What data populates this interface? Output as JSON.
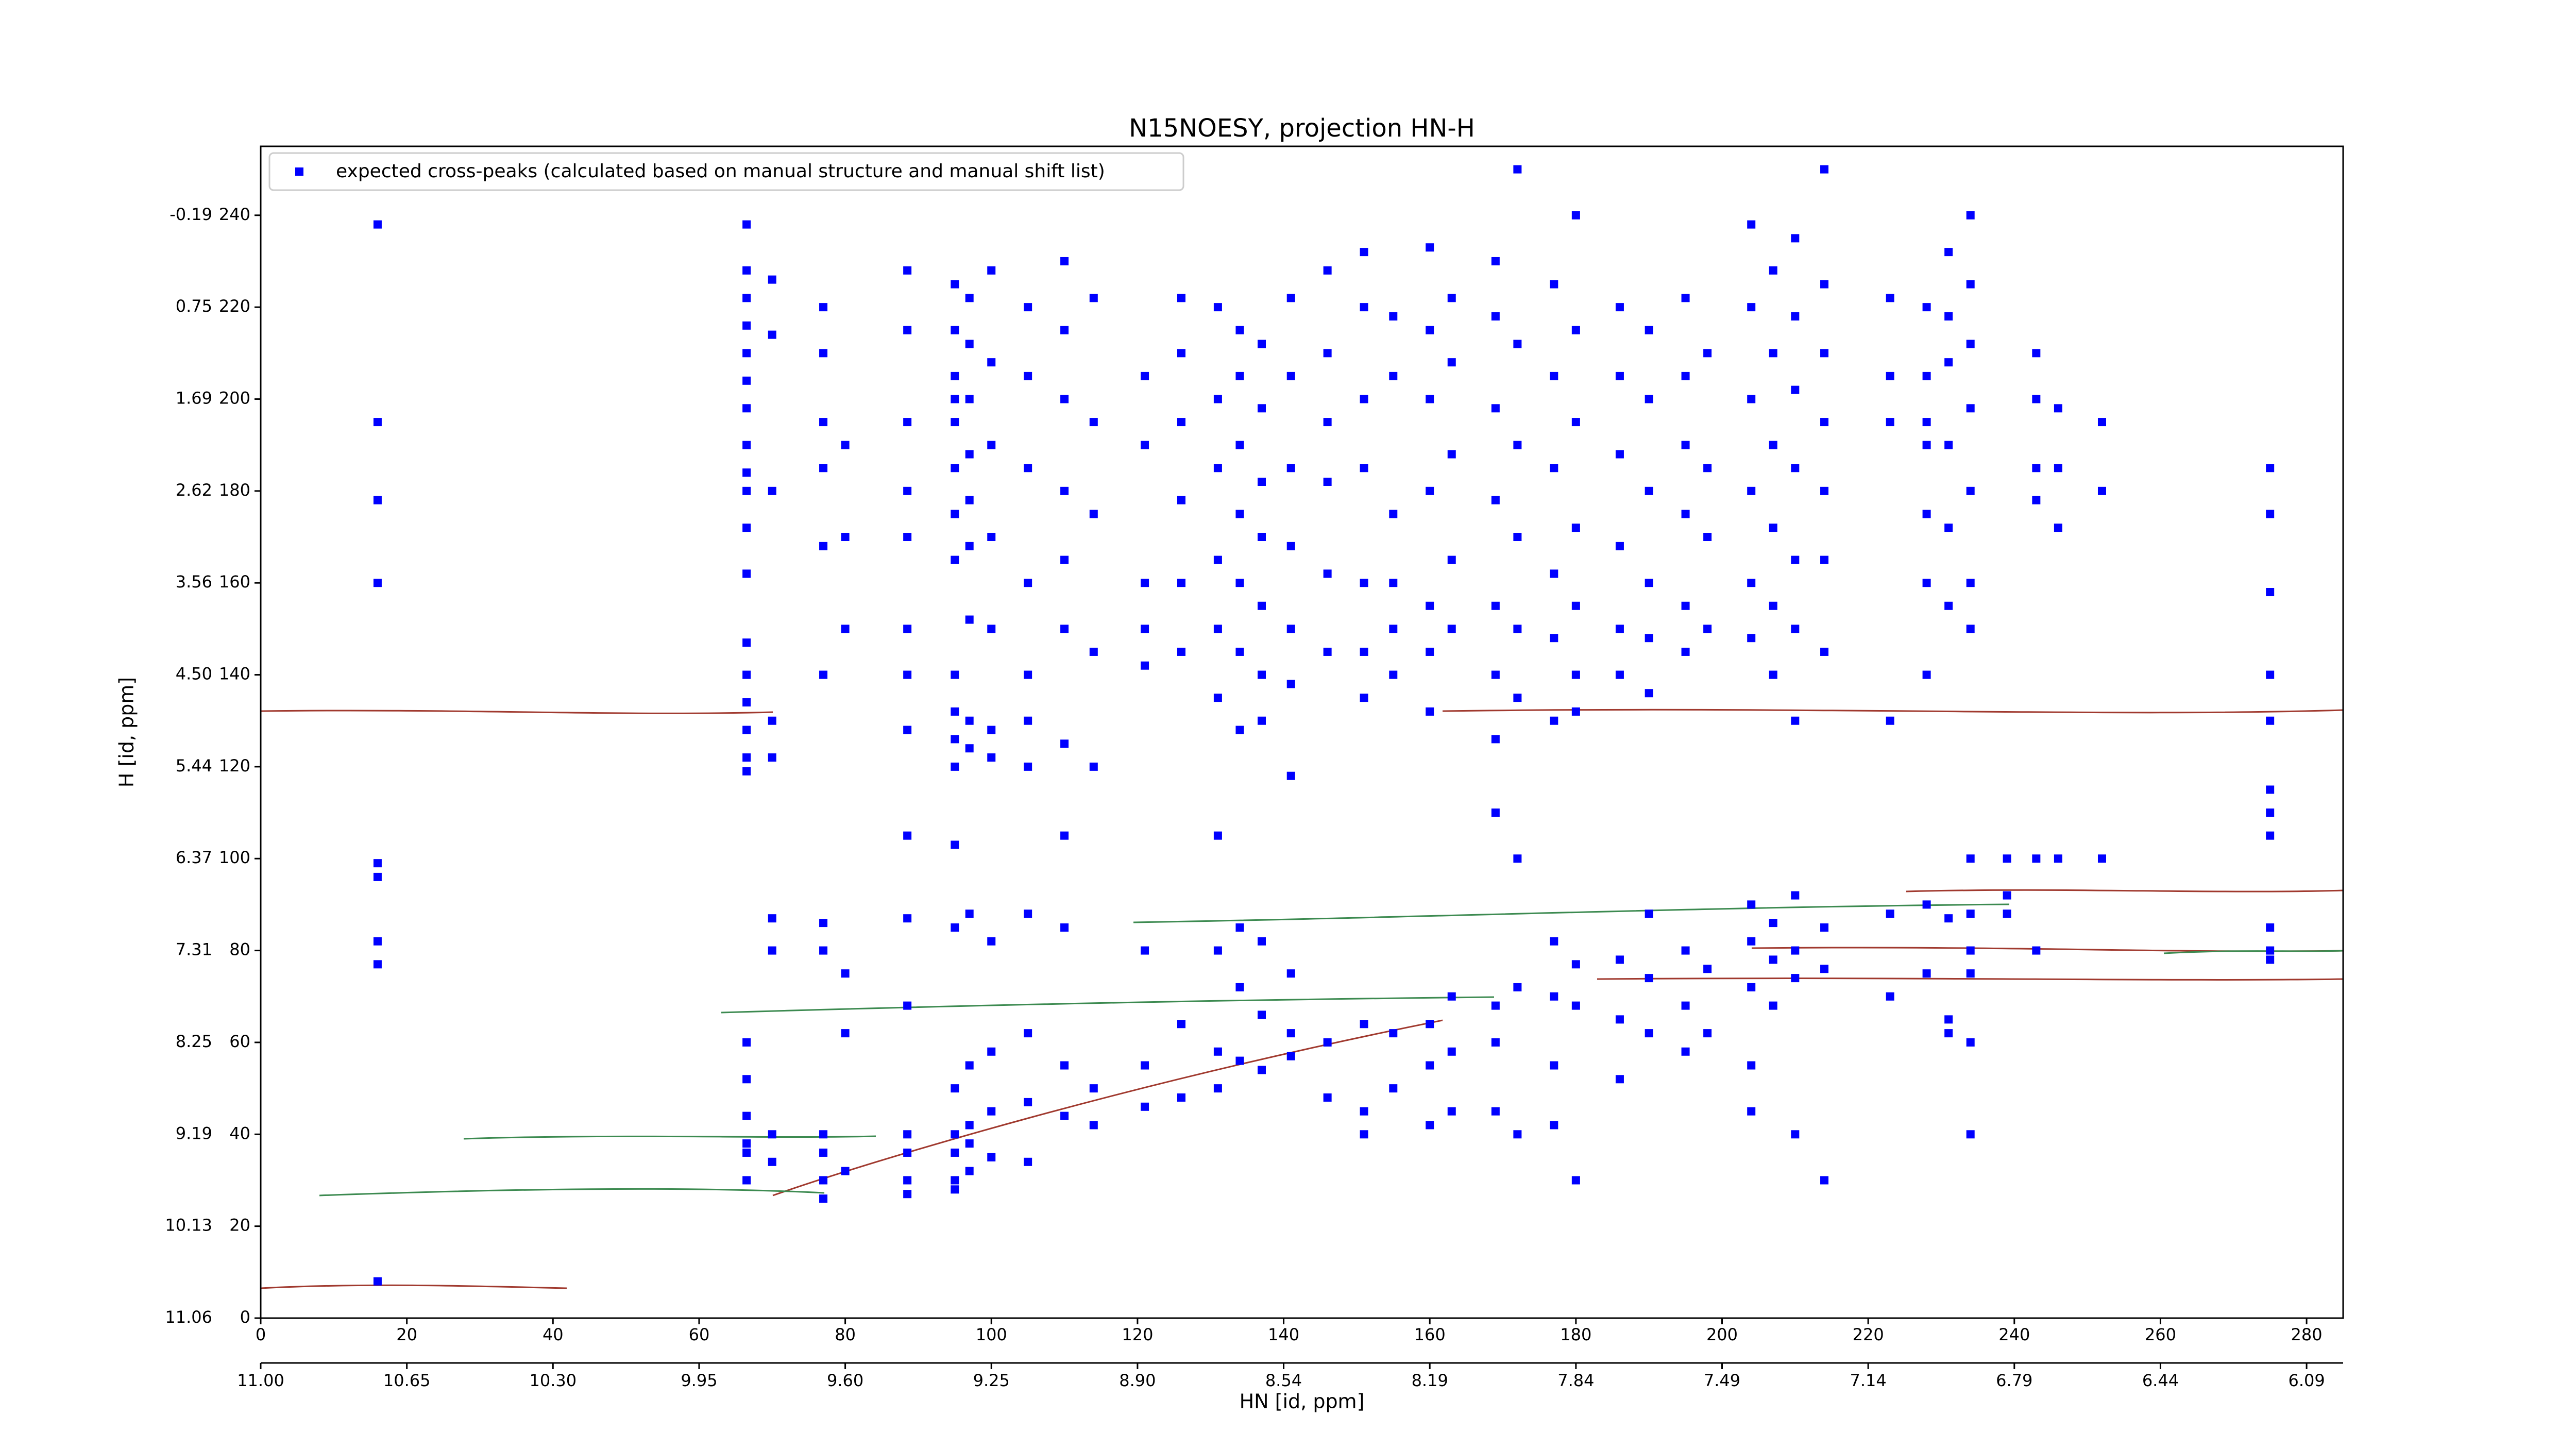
{
  "chart_data": {
    "type": "scatter",
    "title": "N15NOESY, projection HN-H",
    "xlabel": "HN [id, ppm]",
    "ylabel": "H [id, ppm]",
    "xlim": [
      0,
      285
    ],
    "ylim": [
      0,
      255
    ],
    "xticks": [
      0,
      20,
      40,
      60,
      80,
      100,
      120,
      140,
      160,
      180,
      200,
      220,
      240,
      260,
      280
    ],
    "x2ticks": [
      {
        "value": 0,
        "label": "11.00"
      },
      {
        "value": 20,
        "label": "10.65"
      },
      {
        "value": 40,
        "label": "10.30"
      },
      {
        "value": 60,
        "label": "9.95"
      },
      {
        "value": 80,
        "label": "9.60"
      },
      {
        "value": 100,
        "label": "9.25"
      },
      {
        "value": 120,
        "label": "8.90"
      },
      {
        "value": 140,
        "label": "8.54"
      },
      {
        "value": 160,
        "label": "8.19"
      },
      {
        "value": 180,
        "label": "7.84"
      },
      {
        "value": 200,
        "label": "7.49"
      },
      {
        "value": 220,
        "label": "7.14"
      },
      {
        "value": 240,
        "label": "6.79"
      },
      {
        "value": 260,
        "label": "6.44"
      },
      {
        "value": 280,
        "label": "6.09"
      }
    ],
    "yticks": [
      0,
      20,
      40,
      60,
      80,
      100,
      120,
      140,
      160,
      180,
      200,
      220,
      240
    ],
    "y2ticks": [
      {
        "value": 0,
        "label": "11.06"
      },
      {
        "value": 20,
        "label": "10.13"
      },
      {
        "value": 40,
        "label": "9.19"
      },
      {
        "value": 60,
        "label": "8.25"
      },
      {
        "value": 80,
        "label": "7.31"
      },
      {
        "value": 100,
        "label": "6.37"
      },
      {
        "value": 120,
        "label": "5.44"
      },
      {
        "value": 140,
        "label": "4.50"
      },
      {
        "value": 160,
        "label": "3.56"
      },
      {
        "value": 180,
        "label": "2.62"
      },
      {
        "value": 200,
        "label": "1.69"
      },
      {
        "value": 220,
        "label": "0.75"
      },
      {
        "value": 240,
        "label": "-0.19"
      }
    ],
    "legend": "upper left",
    "series": [
      {
        "name": "expected cross-peaks (calculated based on manual structure and manual shift list)",
        "color": "#0000ff",
        "x": [
          16,
          16,
          16,
          16,
          16,
          16,
          16,
          16,
          16,
          66.5,
          66.5,
          66.5,
          66.5,
          66.5,
          66.5,
          66.5,
          66.5,
          66.5,
          66.5,
          66.5,
          66.5,
          66.5,
          66.5,
          66.5,
          66.5,
          66.5,
          66.5,
          66.5,
          66.5,
          66.5,
          66.5,
          66.5,
          66.5,
          70,
          70,
          70,
          70,
          70,
          70,
          70,
          70,
          70,
          77,
          77,
          77,
          77,
          77,
          77,
          77,
          77,
          77,
          77,
          77,
          77,
          80,
          80,
          80,
          80,
          80,
          80,
          88.5,
          88.5,
          88.5,
          88.5,
          88.5,
          88.5,
          88.5,
          88.5,
          88.5,
          88.5,
          88.5,
          88.5,
          88.5,
          88.5,
          88.5,
          95,
          95,
          95,
          95,
          95,
          95,
          95,
          95,
          95,
          95,
          95,
          95,
          95,
          95,
          95,
          95,
          95,
          95,
          95,
          97,
          97,
          97,
          97,
          97,
          97,
          97,
          97,
          97,
          97,
          97,
          97,
          97,
          97,
          100,
          100,
          100,
          100,
          100,
          100,
          100,
          100,
          100,
          100,
          100,
          105,
          105,
          105,
          105,
          105,
          105,
          105,
          105,
          105,
          105,
          105,
          110,
          110,
          110,
          110,
          110,
          110,
          110,
          110,
          110,
          110,
          110,
          114,
          114,
          114,
          114,
          114,
          114,
          114,
          121,
          121,
          121,
          121,
          121,
          121,
          121,
          121,
          126,
          126,
          126,
          126,
          126,
          126,
          126,
          126,
          131,
          131,
          131,
          131,
          131,
          131,
          131,
          131,
          131,
          131,
          134,
          134,
          134,
          134,
          134,
          134,
          134,
          134,
          134,
          134,
          137,
          137,
          137,
          137,
          137,
          137,
          137,
          137,
          137,
          137,
          141,
          141,
          141,
          141,
          141,
          141,
          141,
          141,
          141,
          141,
          146,
          146,
          146,
          146,
          146,
          146,
          146,
          146,
          151,
          151,
          151,
          151,
          151,
          151,
          151,
          151,
          151,
          151,
          155,
          155,
          155,
          155,
          155,
          155,
          155,
          155,
          160,
          160,
          160,
          160,
          160,
          160,
          160,
          160,
          160,
          160,
          163,
          163,
          163,
          163,
          163,
          163,
          163,
          163,
          169,
          169,
          169,
          169,
          169,
          169,
          169,
          169,
          169,
          169,
          169,
          172,
          172,
          172,
          172,
          172,
          172,
          172,
          172,
          172,
          177,
          177,
          177,
          177,
          177,
          177,
          177,
          177,
          177,
          177,
          180,
          180,
          180,
          180,
          180,
          180,
          180,
          180,
          180,
          180,
          186,
          186,
          186,
          186,
          186,
          186,
          186,
          186,
          186,
          190,
          190,
          190,
          190,
          190,
          190,
          190,
          190,
          190,
          195,
          195,
          195,
          195,
          195,
          195,
          195,
          195,
          195,
          198,
          198,
          198,
          198,
          198,
          198,
          204,
          204,
          204,
          204,
          204,
          204,
          204,
          204,
          204,
          204,
          204,
          207,
          207,
          207,
          207,
          207,
          207,
          207,
          207,
          207,
          210,
          210,
          210,
          210,
          210,
          210,
          210,
          210,
          210,
          210,
          210,
          214,
          214,
          214,
          214,
          214,
          214,
          214,
          214,
          214,
          214,
          223,
          223,
          223,
          223,
          223,
          223,
          228,
          228,
          228,
          228,
          228,
          228,
          228,
          228,
          228,
          231,
          231,
          231,
          231,
          231,
          231,
          231,
          231,
          231,
          234,
          234,
          234,
          234,
          234,
          234,
          234,
          234,
          234,
          234,
          234,
          234,
          234,
          239,
          239,
          239,
          243,
          243,
          243,
          243,
          243,
          243,
          246,
          246,
          246,
          246,
          252,
          252,
          252,
          275,
          275,
          275,
          275,
          275,
          275,
          275,
          275,
          275,
          275,
          275
        ],
        "values": [
          238,
          195,
          178,
          160,
          99,
          96,
          82,
          77,
          8,
          238,
          228,
          222,
          216,
          210,
          204,
          198,
          190,
          184,
          180,
          172,
          162,
          147,
          140,
          134,
          128,
          122,
          119,
          60,
          52,
          44,
          38,
          36,
          30,
          226,
          214,
          180,
          130,
          122,
          87,
          80,
          40,
          34,
          220,
          210,
          195,
          185,
          168,
          140,
          86,
          80,
          40,
          36,
          30,
          26,
          190,
          170,
          150,
          75,
          62,
          32,
          228,
          215,
          195,
          180,
          170,
          150,
          140,
          128,
          105,
          87,
          68,
          40,
          36,
          30,
          27,
          225,
          215,
          205,
          200,
          195,
          185,
          175,
          165,
          140,
          132,
          126,
          120,
          103,
          85,
          50,
          40,
          36,
          30,
          28,
          222,
          212,
          200,
          188,
          178,
          168,
          152,
          130,
          124,
          88,
          55,
          42,
          38,
          32,
          228,
          208,
          190,
          170,
          150,
          128,
          122,
          82,
          58,
          45,
          35,
          220,
          205,
          185,
          160,
          140,
          130,
          120,
          88,
          62,
          47,
          34,
          230,
          215,
          200,
          180,
          165,
          150,
          125,
          105,
          85,
          55,
          44,
          222,
          195,
          175,
          145,
          120,
          50,
          42,
          205,
          190,
          160,
          150,
          142,
          80,
          55,
          46,
          222,
          210,
          195,
          178,
          160,
          145,
          64,
          48,
          220,
          200,
          185,
          165,
          150,
          135,
          105,
          80,
          58,
          50,
          215,
          205,
          190,
          175,
          160,
          145,
          128,
          85,
          72,
          56,
          212,
          198,
          182,
          170,
          155,
          140,
          130,
          82,
          66,
          54,
          222,
          205,
          185,
          168,
          150,
          138,
          118,
          75,
          62,
          57,
          228,
          210,
          195,
          182,
          162,
          145,
          60,
          48,
          232,
          220,
          200,
          185,
          160,
          145,
          135,
          64,
          45,
          40,
          218,
          205,
          175,
          160,
          150,
          140,
          62,
          50,
          233,
          215,
          200,
          180,
          155,
          145,
          132,
          64,
          55,
          42,
          222,
          208,
          188,
          165,
          150,
          70,
          58,
          45,
          230,
          218,
          198,
          178,
          155,
          140,
          126,
          110,
          68,
          60,
          45,
          250,
          212,
          190,
          170,
          150,
          135,
          100,
          72,
          40,
          225,
          205,
          185,
          162,
          148,
          130,
          82,
          70,
          55,
          42,
          240,
          215,
          195,
          172,
          155,
          140,
          132,
          77,
          68,
          30,
          220,
          205,
          188,
          168,
          150,
          140,
          78,
          65,
          52,
          215,
          200,
          180,
          160,
          148,
          136,
          88,
          74,
          62,
          222,
          205,
          190,
          175,
          155,
          145,
          80,
          68,
          58,
          210,
          185,
          170,
          150,
          76,
          62,
          238,
          220,
          200,
          180,
          160,
          148,
          90,
          82,
          72,
          55,
          45,
          228,
          210,
          190,
          172,
          155,
          140,
          86,
          78,
          68,
          235,
          218,
          202,
          185,
          165,
          150,
          130,
          92,
          80,
          74,
          40,
          250,
          225,
          210,
          195,
          180,
          165,
          145,
          85,
          76,
          30,
          222,
          205,
          195,
          130,
          88,
          70,
          220,
          205,
          195,
          190,
          175,
          160,
          140,
          90,
          75,
          232,
          218,
          208,
          190,
          172,
          155,
          87,
          65,
          62,
          240,
          225,
          212,
          198,
          180,
          160,
          150,
          100,
          88,
          80,
          75,
          60,
          40,
          100,
          92,
          88,
          210,
          200,
          185,
          178,
          100,
          80,
          198,
          185,
          172,
          100,
          195,
          180,
          100,
          185,
          175,
          158,
          140,
          130,
          115,
          110,
          105,
          85,
          80,
          78
        ]
      }
    ]
  }
}
